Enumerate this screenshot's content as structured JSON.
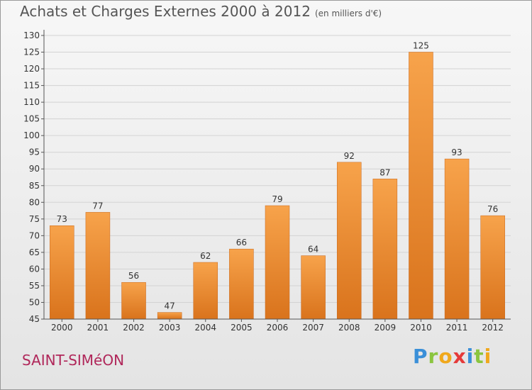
{
  "chart_data": {
    "type": "bar",
    "title": "Achats et Charges Externes 2000 à 2012",
    "unit": "(en milliers d'€)",
    "categories": [
      "2000",
      "2001",
      "2002",
      "2003",
      "2004",
      "2005",
      "2006",
      "2007",
      "2008",
      "2009",
      "2010",
      "2011",
      "2012"
    ],
    "values": [
      73,
      77,
      56,
      47,
      62,
      66,
      79,
      64,
      92,
      87,
      125,
      93,
      76
    ],
    "ylim": [
      45,
      130
    ],
    "yticks": [
      45,
      50,
      55,
      60,
      65,
      70,
      75,
      80,
      85,
      90,
      95,
      100,
      105,
      110,
      115,
      120,
      125,
      130
    ],
    "grid": true,
    "bar_color": "#f09a3e"
  },
  "place_name": "SAINT-SIMéON",
  "brand": "Proxiti"
}
